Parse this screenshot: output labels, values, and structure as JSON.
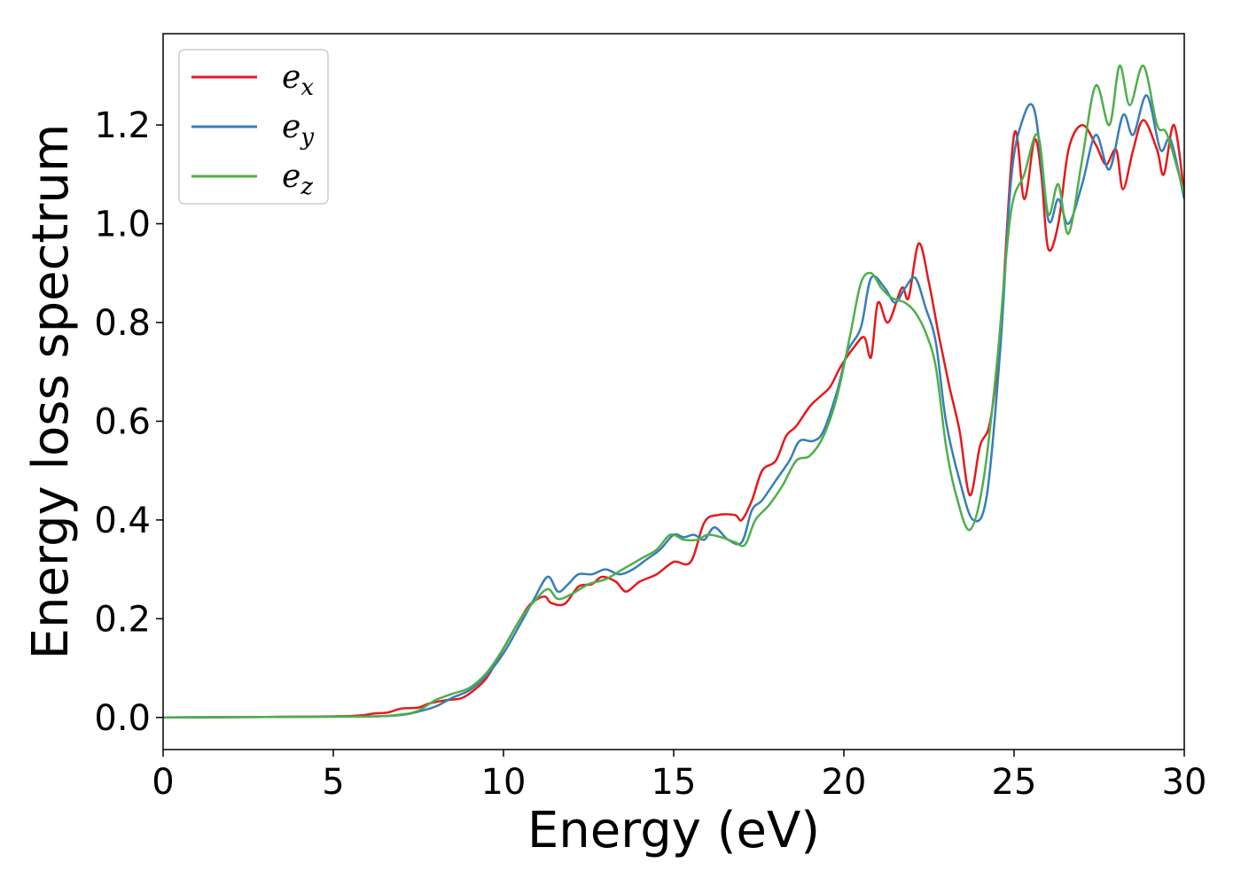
{
  "chart_data": {
    "type": "line",
    "title": "",
    "xlabel": "Energy (eV)",
    "ylabel": "Energy loss spectrum",
    "xlim": [
      0,
      30
    ],
    "ylim": [
      -0.065,
      1.385
    ],
    "xticks": [
      0,
      5,
      10,
      15,
      20,
      25,
      30
    ],
    "yticks": [
      0.0,
      0.2,
      0.4,
      0.6,
      0.8,
      1.0,
      1.2
    ],
    "xtick_labels": [
      "0",
      "5",
      "10",
      "15",
      "20",
      "25",
      "30"
    ],
    "ytick_labels": [
      "0.0",
      "0.2",
      "0.4",
      "0.6",
      "0.8",
      "1.0",
      "1.2"
    ],
    "grid": false,
    "legend_position": "top-left",
    "series": [
      {
        "name": "e",
        "subscript": "x",
        "color": "#e41a1c",
        "points": [
          [
            0,
            0
          ],
          [
            3,
            0.001
          ],
          [
            5.5,
            0.003
          ],
          [
            6.2,
            0.008
          ],
          [
            6.6,
            0.01
          ],
          [
            7,
            0.018
          ],
          [
            7.5,
            0.02
          ],
          [
            7.8,
            0.028
          ],
          [
            8.3,
            0.035
          ],
          [
            8.8,
            0.04
          ],
          [
            9.3,
            0.065
          ],
          [
            9.6,
            0.09
          ],
          [
            10,
            0.14
          ],
          [
            10.5,
            0.2
          ],
          [
            10.8,
            0.23
          ],
          [
            11.2,
            0.245
          ],
          [
            11.4,
            0.232
          ],
          [
            11.8,
            0.23
          ],
          [
            12.2,
            0.265
          ],
          [
            12.6,
            0.27
          ],
          [
            12.9,
            0.285
          ],
          [
            13.3,
            0.275
          ],
          [
            13.6,
            0.255
          ],
          [
            14,
            0.275
          ],
          [
            14.5,
            0.29
          ],
          [
            15,
            0.315
          ],
          [
            15.5,
            0.315
          ],
          [
            15.9,
            0.395
          ],
          [
            16.3,
            0.41
          ],
          [
            16.8,
            0.41
          ],
          [
            17,
            0.4
          ],
          [
            17.3,
            0.44
          ],
          [
            17.6,
            0.5
          ],
          [
            18,
            0.52
          ],
          [
            18.3,
            0.57
          ],
          [
            18.6,
            0.59
          ],
          [
            19,
            0.63
          ],
          [
            19.3,
            0.65
          ],
          [
            19.6,
            0.67
          ],
          [
            19.9,
            0.71
          ],
          [
            20.3,
            0.75
          ],
          [
            20.6,
            0.77
          ],
          [
            20.8,
            0.73
          ],
          [
            21,
            0.84
          ],
          [
            21.3,
            0.8
          ],
          [
            21.7,
            0.87
          ],
          [
            21.9,
            0.85
          ],
          [
            22.2,
            0.96
          ],
          [
            22.5,
            0.88
          ],
          [
            22.8,
            0.77
          ],
          [
            23.1,
            0.67
          ],
          [
            23.4,
            0.58
          ],
          [
            23.7,
            0.45
          ],
          [
            24,
            0.55
          ],
          [
            24.3,
            0.6
          ],
          [
            24.6,
            0.78
          ],
          [
            25,
            1.18
          ],
          [
            25.3,
            1.05
          ],
          [
            25.6,
            1.17
          ],
          [
            25.8,
            1.1
          ],
          [
            26,
            0.95
          ],
          [
            26.3,
            1.0
          ],
          [
            26.6,
            1.15
          ],
          [
            27,
            1.2
          ],
          [
            27.4,
            1.16
          ],
          [
            27.7,
            1.12
          ],
          [
            28,
            1.15
          ],
          [
            28.2,
            1.07
          ],
          [
            28.5,
            1.15
          ],
          [
            28.8,
            1.21
          ],
          [
            29.2,
            1.15
          ],
          [
            29.4,
            1.1
          ],
          [
            29.7,
            1.2
          ],
          [
            30,
            1.06
          ]
        ]
      },
      {
        "name": "e",
        "subscript": "y",
        "color": "#377eb8",
        "points": [
          [
            0,
            0
          ],
          [
            3,
            0.001
          ],
          [
            6,
            0.002
          ],
          [
            7,
            0.005
          ],
          [
            7.5,
            0.012
          ],
          [
            8,
            0.022
          ],
          [
            8.5,
            0.04
          ],
          [
            9,
            0.055
          ],
          [
            9.5,
            0.085
          ],
          [
            10,
            0.13
          ],
          [
            10.5,
            0.19
          ],
          [
            10.9,
            0.24
          ],
          [
            11.3,
            0.285
          ],
          [
            11.6,
            0.255
          ],
          [
            11.9,
            0.27
          ],
          [
            12.2,
            0.29
          ],
          [
            12.6,
            0.29
          ],
          [
            13,
            0.3
          ],
          [
            13.4,
            0.29
          ],
          [
            13.8,
            0.3
          ],
          [
            14.2,
            0.32
          ],
          [
            14.6,
            0.34
          ],
          [
            15,
            0.37
          ],
          [
            15.3,
            0.365
          ],
          [
            15.6,
            0.37
          ],
          [
            15.9,
            0.36
          ],
          [
            16.2,
            0.385
          ],
          [
            16.6,
            0.36
          ],
          [
            17,
            0.355
          ],
          [
            17.3,
            0.42
          ],
          [
            17.6,
            0.44
          ],
          [
            18,
            0.48
          ],
          [
            18.4,
            0.52
          ],
          [
            18.7,
            0.56
          ],
          [
            19.1,
            0.56
          ],
          [
            19.4,
            0.58
          ],
          [
            19.8,
            0.66
          ],
          [
            20.1,
            0.74
          ],
          [
            20.5,
            0.79
          ],
          [
            20.8,
            0.89
          ],
          [
            21.2,
            0.87
          ],
          [
            21.5,
            0.84
          ],
          [
            21.8,
            0.87
          ],
          [
            22.1,
            0.89
          ],
          [
            22.4,
            0.83
          ],
          [
            22.7,
            0.76
          ],
          [
            23,
            0.6
          ],
          [
            23.4,
            0.48
          ],
          [
            23.8,
            0.4
          ],
          [
            24.2,
            0.45
          ],
          [
            24.6,
            0.75
          ],
          [
            24.9,
            1.08
          ],
          [
            25.2,
            1.2
          ],
          [
            25.6,
            1.23
          ],
          [
            26,
            1.01
          ],
          [
            26.3,
            1.05
          ],
          [
            26.6,
            1.0
          ],
          [
            27,
            1.08
          ],
          [
            27.4,
            1.18
          ],
          [
            27.8,
            1.11
          ],
          [
            28.2,
            1.22
          ],
          [
            28.5,
            1.18
          ],
          [
            28.9,
            1.26
          ],
          [
            29.3,
            1.15
          ],
          [
            29.6,
            1.17
          ],
          [
            30,
            1.05
          ]
        ]
      },
      {
        "name": "e",
        "subscript": "z",
        "color": "#4daf4a",
        "points": [
          [
            0,
            0
          ],
          [
            3,
            0.001
          ],
          [
            6,
            0.002
          ],
          [
            7,
            0.006
          ],
          [
            7.5,
            0.014
          ],
          [
            8,
            0.035
          ],
          [
            8.5,
            0.048
          ],
          [
            9,
            0.06
          ],
          [
            9.5,
            0.09
          ],
          [
            10,
            0.14
          ],
          [
            10.5,
            0.2
          ],
          [
            10.9,
            0.235
          ],
          [
            11.3,
            0.26
          ],
          [
            11.6,
            0.24
          ],
          [
            12,
            0.25
          ],
          [
            12.5,
            0.27
          ],
          [
            13,
            0.28
          ],
          [
            13.5,
            0.3
          ],
          [
            14,
            0.32
          ],
          [
            14.5,
            0.34
          ],
          [
            14.9,
            0.37
          ],
          [
            15.3,
            0.36
          ],
          [
            15.7,
            0.36
          ],
          [
            16,
            0.37
          ],
          [
            16.4,
            0.365
          ],
          [
            16.8,
            0.355
          ],
          [
            17.1,
            0.35
          ],
          [
            17.4,
            0.4
          ],
          [
            17.8,
            0.43
          ],
          [
            18.2,
            0.47
          ],
          [
            18.6,
            0.52
          ],
          [
            19,
            0.53
          ],
          [
            19.4,
            0.57
          ],
          [
            19.8,
            0.65
          ],
          [
            20.2,
            0.78
          ],
          [
            20.5,
            0.88
          ],
          [
            20.8,
            0.9
          ],
          [
            21.1,
            0.87
          ],
          [
            21.4,
            0.85
          ],
          [
            21.8,
            0.84
          ],
          [
            22.1,
            0.82
          ],
          [
            22.4,
            0.78
          ],
          [
            22.7,
            0.71
          ],
          [
            23,
            0.55
          ],
          [
            23.3,
            0.45
          ],
          [
            23.7,
            0.38
          ],
          [
            24.1,
            0.48
          ],
          [
            24.5,
            0.72
          ],
          [
            24.9,
            1.02
          ],
          [
            25.3,
            1.1
          ],
          [
            25.7,
            1.18
          ],
          [
            26,
            1.02
          ],
          [
            26.3,
            1.08
          ],
          [
            26.6,
            0.98
          ],
          [
            27,
            1.13
          ],
          [
            27.4,
            1.28
          ],
          [
            27.8,
            1.2
          ],
          [
            28.1,
            1.32
          ],
          [
            28.4,
            1.24
          ],
          [
            28.8,
            1.32
          ],
          [
            29.2,
            1.2
          ],
          [
            29.5,
            1.18
          ],
          [
            30,
            1.06
          ]
        ]
      }
    ]
  }
}
